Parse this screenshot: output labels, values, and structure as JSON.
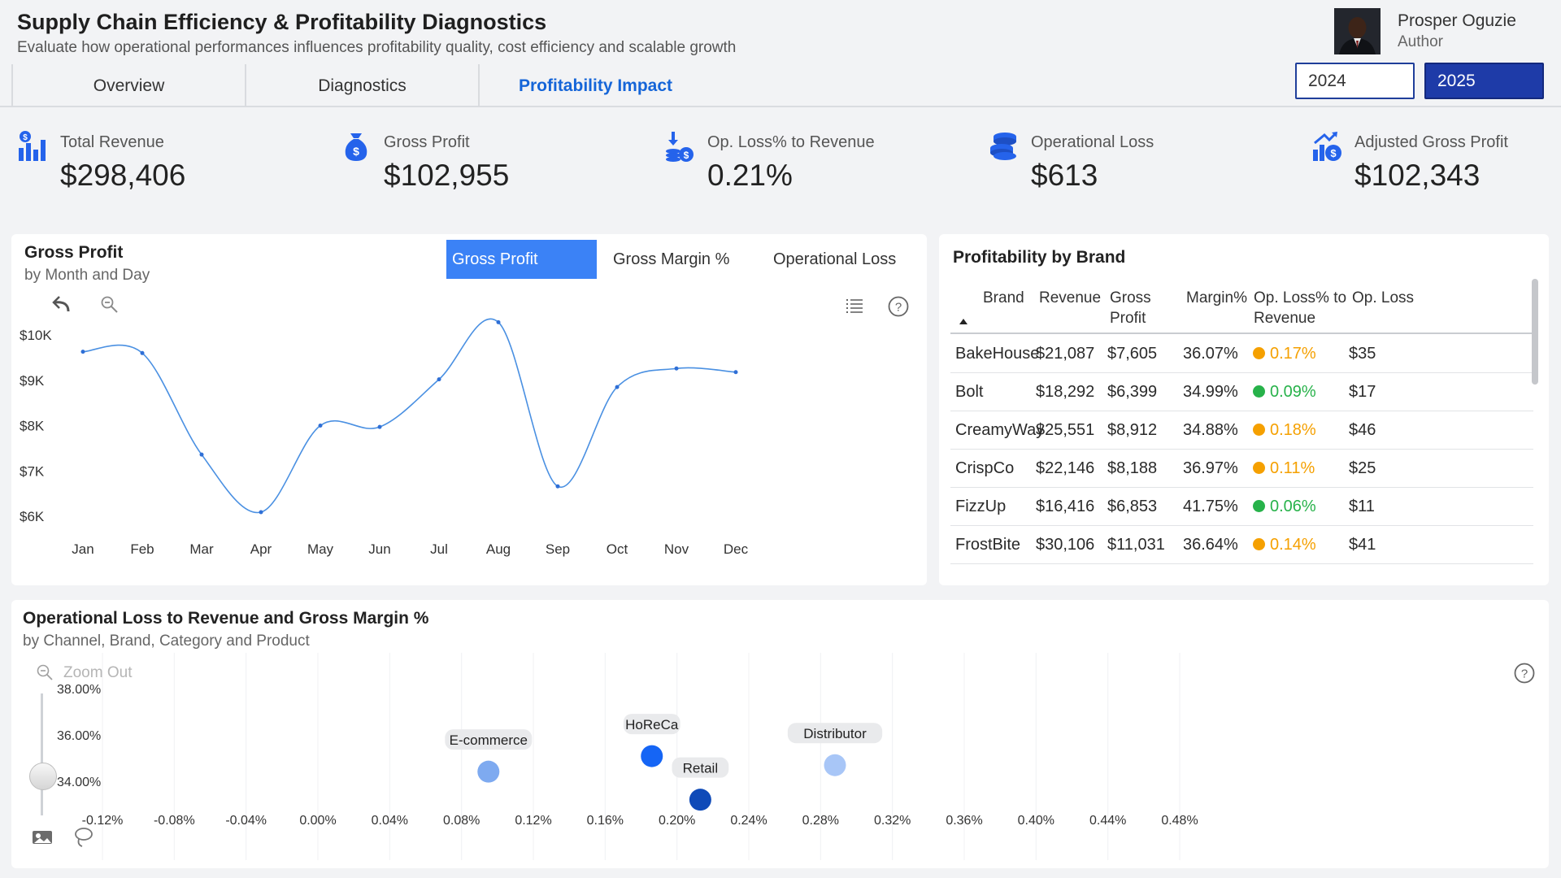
{
  "header": {
    "title": "Supply Chain Efficiency & Profitability Diagnostics",
    "subtitle": "Evaluate how operational performances influences profitability quality, cost efficiency and scalable growth",
    "author_name": "Prosper Oguzie",
    "author_role": "Author"
  },
  "tabs": [
    {
      "label": "Overview"
    },
    {
      "label": "Diagnostics"
    },
    {
      "label": "Profitability Impact"
    }
  ],
  "years": {
    "y2024": "2024",
    "y2025": "2025",
    "selected": "2025"
  },
  "kpis": [
    {
      "label": "Total Revenue",
      "value": "$298,406",
      "icon": "revenue-chart-icon"
    },
    {
      "label": "Gross Profit",
      "value": "$102,955",
      "icon": "money-bag-icon"
    },
    {
      "label": "Op. Loss% to Revenue",
      "value": "0.21%",
      "icon": "coins-down-icon"
    },
    {
      "label": "Operational Loss",
      "value": "$613",
      "icon": "coin-stack-icon"
    },
    {
      "label": "Adjusted Gross Profit",
      "value": "$102,343",
      "icon": "growth-chart-icon"
    }
  ],
  "gross_profit_card": {
    "title": "Gross Profit",
    "subtitle": "by Month and Day",
    "toggles": [
      "Gross Profit",
      "Gross Margin %",
      "Operational Loss"
    ],
    "active_toggle": "Gross Profit"
  },
  "brand_table": {
    "title": "Profitability by Brand",
    "columns": [
      "Brand",
      "Revenue",
      "Gross Profit",
      "Margin%",
      "Op. Loss% to Revenue",
      "Op. Loss"
    ],
    "rows": [
      {
        "brand": "BakeHouse",
        "revenue": "$21,087",
        "gross_profit": "$7,605",
        "margin": "36.07%",
        "op_loss_pct": "0.17%",
        "status": "orange",
        "op_loss": "$35"
      },
      {
        "brand": "Bolt",
        "revenue": "$18,292",
        "gross_profit": "$6,399",
        "margin": "34.99%",
        "op_loss_pct": "0.09%",
        "status": "green",
        "op_loss": "$17"
      },
      {
        "brand": "CreamyWay",
        "revenue": "$25,551",
        "gross_profit": "$8,912",
        "margin": "34.88%",
        "op_loss_pct": "0.18%",
        "status": "orange",
        "op_loss": "$46"
      },
      {
        "brand": "CrispCo",
        "revenue": "$22,146",
        "gross_profit": "$8,188",
        "margin": "36.97%",
        "op_loss_pct": "0.11%",
        "status": "orange",
        "op_loss": "$25"
      },
      {
        "brand": "FizzUp",
        "revenue": "$16,416",
        "gross_profit": "$6,853",
        "margin": "41.75%",
        "op_loss_pct": "0.06%",
        "status": "green",
        "op_loss": "$11"
      },
      {
        "brand": "FrostBite",
        "revenue": "$30,106",
        "gross_profit": "$11,031",
        "margin": "36.64%",
        "op_loss_pct": "0.14%",
        "status": "orange",
        "op_loss": "$41"
      }
    ],
    "status_colors": {
      "orange": "#f5a000",
      "green": "#27b24a"
    }
  },
  "bubble_card": {
    "title": "Operational Loss to Revenue and Gross Margin %",
    "subtitle": "by Channel, Brand, Category and Product",
    "zoom_out_label": "Zoom Out"
  },
  "chart_data": [
    {
      "type": "line",
      "x": [
        "Jan",
        "Feb",
        "Mar",
        "Apr",
        "May",
        "Jun",
        "Jul",
        "Aug",
        "Sep",
        "Oct",
        "Nov",
        "Dec"
      ],
      "series": [
        {
          "values": [
            9630,
            9600,
            7360,
            6090,
            8000,
            7970,
            9020,
            10280,
            6660,
            8850,
            9260,
            9180
          ],
          "color": "#4a90e2"
        }
      ],
      "yticks": [
        "$10K",
        "$9K",
        "$8K",
        "$7K",
        "$6K"
      ],
      "ylim": [
        6000,
        10000
      ]
    },
    {
      "type": "scatter",
      "points": [
        {
          "label": "E-commerce",
          "x": 0.095,
          "y": 34.45,
          "color": "#7eaaf0"
        },
        {
          "label": "HoReCa",
          "x": 0.186,
          "y": 35.12,
          "color": "#1565f5"
        },
        {
          "label": "Retail",
          "x": 0.213,
          "y": 33.24,
          "color": "#0f4ab8"
        },
        {
          "label": "Distributor",
          "x": 0.288,
          "y": 34.73,
          "color": "#a8c6f7"
        }
      ],
      "xticks": [
        "-0.12%",
        "-0.08%",
        "-0.04%",
        "0.00%",
        "0.04%",
        "0.08%",
        "0.12%",
        "0.16%",
        "0.20%",
        "0.24%",
        "0.28%",
        "0.32%",
        "0.36%",
        "0.40%",
        "0.44%",
        "0.48%"
      ],
      "yticks": [
        "38.00%",
        "36.00%",
        "34.00%"
      ],
      "xlim": [
        -0.12,
        0.48
      ],
      "ylim": [
        34,
        38
      ]
    }
  ]
}
